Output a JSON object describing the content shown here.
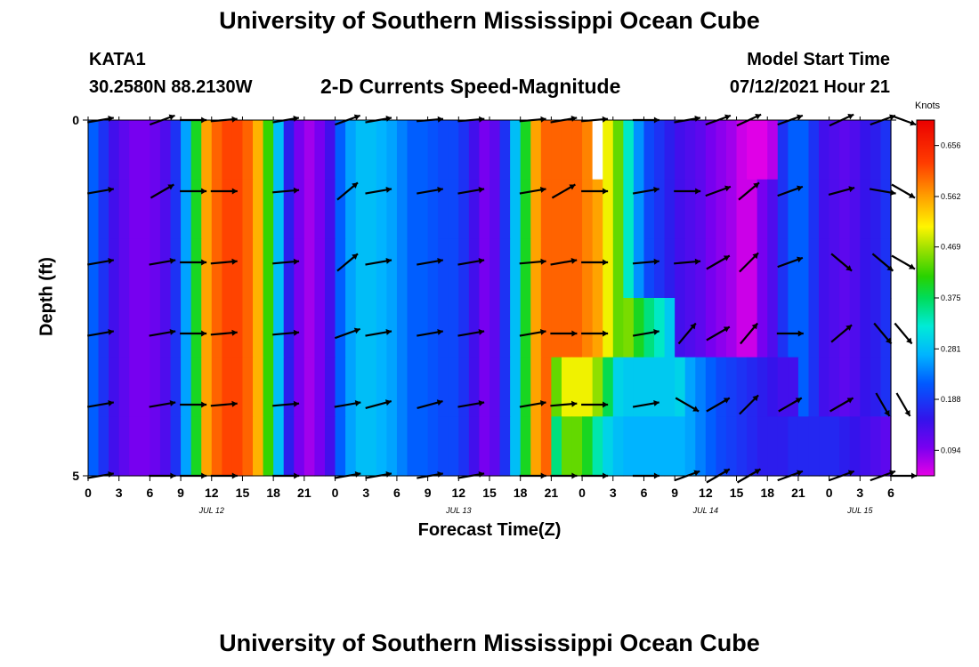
{
  "header": {
    "title": "University of Southern Mississippi Ocean Cube",
    "station": "KATA1",
    "coords": "30.2580N  88.2130W",
    "plot_title": "2-D Currents Speed-Magnitude",
    "model_start_label": "Model Start Time",
    "model_start_value": "07/12/2021 Hour 21"
  },
  "footer": {
    "title": "University of Southern Mississippi Ocean Cube"
  },
  "chart_data": {
    "type": "heatmap",
    "title": "2-D Currents Speed-Magnitude",
    "xlabel": "Forecast Time(Z)",
    "ylabel": "Depth (ft)",
    "x_ticks": [
      "0",
      "3",
      "6",
      "9",
      "12",
      "15",
      "18",
      "21",
      "0",
      "3",
      "6",
      "9",
      "12",
      "15",
      "18",
      "21",
      "0",
      "3",
      "6",
      "9",
      "12",
      "15",
      "18",
      "21",
      "0",
      "3",
      "6"
    ],
    "date_labels": [
      {
        "text": "JUL 12",
        "tick_index": 4
      },
      {
        "text": "JUL 13",
        "tick_index": 12
      },
      {
        "text": "JUL 14",
        "tick_index": 20
      },
      {
        "text": "JUL 15",
        "tick_index": 25
      }
    ],
    "y_ticks": [
      "0",
      "5"
    ],
    "ylim": [
      0,
      5
    ],
    "x_hours": [
      0,
      78
    ],
    "depth_rows": [
      0,
      1,
      2,
      3,
      4,
      5
    ],
    "colorbar": {
      "unit": "Knots",
      "min": 0.047,
      "max": 0.703,
      "ticks": [
        "0.656",
        "0.562",
        "0.469",
        "0.375",
        "0.281",
        "0.188",
        "0.094"
      ],
      "tick_values": [
        0.656,
        0.562,
        0.469,
        0.375,
        0.281,
        0.188,
        0.094
      ]
    },
    "speed_profile": {
      "hours": [
        0,
        1,
        2,
        3,
        4,
        5,
        6,
        7,
        8,
        9,
        10,
        11,
        12,
        13,
        14,
        15,
        16,
        17,
        18,
        19,
        20,
        21,
        22,
        23,
        24,
        25,
        26,
        27,
        28,
        29,
        30,
        31,
        32,
        33,
        34,
        35,
        36,
        37,
        38,
        39,
        40,
        41,
        42,
        43,
        44,
        45,
        46,
        47,
        48,
        49,
        50,
        51,
        52,
        53,
        54,
        55,
        56,
        57,
        58,
        59,
        60,
        61,
        62,
        63,
        64,
        65,
        66,
        67,
        68,
        69,
        70,
        71,
        72,
        73,
        74,
        75,
        76,
        77,
        78
      ],
      "values": [
        0.22,
        0.18,
        0.14,
        0.12,
        0.1,
        0.1,
        0.11,
        0.13,
        0.18,
        0.26,
        0.4,
        0.56,
        0.6,
        0.62,
        0.62,
        0.6,
        0.55,
        0.42,
        0.28,
        0.16,
        0.1,
        0.08,
        0.1,
        0.14,
        0.22,
        0.26,
        0.28,
        0.28,
        0.27,
        0.26,
        0.24,
        0.22,
        0.22,
        0.21,
        0.2,
        0.2,
        0.18,
        0.14,
        0.1,
        0.12,
        0.18,
        0.28,
        0.4,
        0.56,
        0.6,
        0.6,
        0.6,
        0.6,
        0.58,
        0.56,
        0.5,
        0.44,
        0.33,
        0.25,
        0.2,
        0.18,
        0.16,
        0.14,
        0.13,
        0.12,
        0.1,
        0.09,
        0.08,
        0.06,
        0.06,
        0.1,
        0.13,
        0.18,
        0.22,
        0.22,
        0.18,
        0.14,
        0.13,
        0.12,
        0.13,
        0.15,
        0.16,
        0.18,
        0.16
      ]
    },
    "depth_overrides": [
      {
        "depth": 3,
        "hours": [
          52,
          53,
          54,
          55,
          56
        ],
        "values": [
          0.45,
          0.4,
          0.36,
          0.33,
          0.29
        ]
      },
      {
        "depth": 4,
        "hours": [
          45,
          46,
          47,
          48,
          49,
          50,
          51,
          52,
          53,
          54,
          55,
          56,
          57,
          58,
          59,
          60,
          61,
          62,
          63,
          64,
          65,
          66,
          67,
          68
        ],
        "values": [
          0.44,
          0.5,
          0.5,
          0.5,
          0.46,
          0.38,
          0.3,
          0.29,
          0.29,
          0.29,
          0.29,
          0.29,
          0.3,
          0.26,
          0.24,
          0.22,
          0.2,
          0.19,
          0.18,
          0.17,
          0.16,
          0.15,
          0.14,
          0.14
        ]
      },
      {
        "depth": 5,
        "hours": [
          45,
          46,
          47,
          48,
          49,
          50,
          51,
          52,
          53,
          54,
          55,
          56,
          57,
          58,
          59,
          60,
          61,
          62,
          63,
          64,
          65,
          66,
          67,
          68,
          69,
          70,
          71,
          72,
          73,
          74,
          75,
          76,
          77
        ],
        "values": [
          0.36,
          0.44,
          0.44,
          0.4,
          0.34,
          0.3,
          0.28,
          0.27,
          0.27,
          0.27,
          0.27,
          0.27,
          0.27,
          0.26,
          0.24,
          0.22,
          0.2,
          0.19,
          0.18,
          0.17,
          0.16,
          0.16,
          0.16,
          0.17,
          0.17,
          0.17,
          0.17,
          0.17,
          0.16,
          0.15,
          0.14,
          0.13,
          0.12
        ]
      },
      {
        "depth": 0,
        "hours": [
          64,
          65,
          66
        ],
        "values": [
          0.05,
          0.05,
          0.07
        ]
      }
    ],
    "missing_cells": [
      {
        "depth": 0,
        "hour": 49
      }
    ],
    "vectors": {
      "hours": [
        0,
        6,
        9,
        12,
        18,
        24,
        27,
        32,
        36,
        42,
        45,
        48,
        53,
        57,
        60,
        63,
        67,
        72,
        76,
        78
      ],
      "directions_deg": [
        [
          10,
          20,
          0,
          5,
          10,
          20,
          10,
          5,
          5,
          5,
          10,
          5,
          0,
          10,
          20,
          25,
          20,
          25,
          20,
          -20
        ],
        [
          10,
          30,
          0,
          0,
          5,
          40,
          10,
          10,
          10,
          10,
          30,
          0,
          10,
          0,
          20,
          40,
          20,
          15,
          -10,
          -30
        ],
        [
          10,
          10,
          0,
          5,
          5,
          40,
          10,
          10,
          10,
          5,
          10,
          0,
          5,
          5,
          30,
          45,
          20,
          -40,
          -40,
          -30
        ],
        [
          10,
          10,
          0,
          5,
          5,
          20,
          10,
          10,
          10,
          10,
          0,
          0,
          10,
          50,
          30,
          50,
          0,
          40,
          -50,
          -50
        ],
        [
          10,
          10,
          0,
          5,
          5,
          10,
          15,
          15,
          10,
          10,
          5,
          0,
          10,
          -30,
          30,
          45,
          30,
          30,
          -60,
          -60
        ],
        [
          10,
          0,
          0,
          0,
          0,
          10,
          10,
          10,
          10,
          0,
          0,
          0,
          0,
          20,
          30,
          30,
          20,
          20,
          20,
          0
        ]
      ]
    }
  }
}
